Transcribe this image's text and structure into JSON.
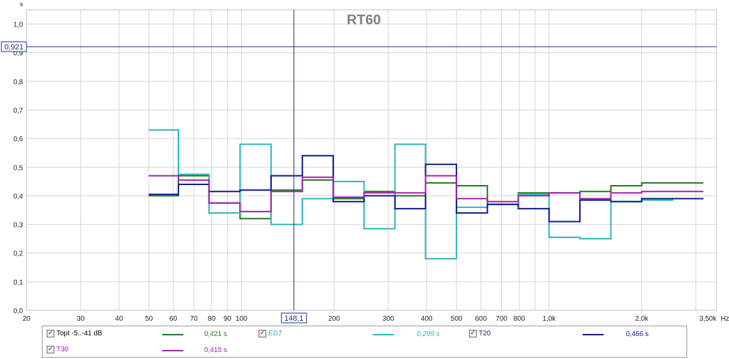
{
  "chart_data": {
    "type": "line",
    "title": "RT60",
    "y_unit": "s",
    "x_unit": "Hz",
    "x_scale": "log",
    "xlim": [
      20,
      3500
    ],
    "ylim": [
      0,
      1.05
    ],
    "grid": true,
    "y_ticks": [
      "0,0",
      "0,1",
      "0,2",
      "0,3",
      "0,4",
      "0,5",
      "0,6",
      "0,7",
      "0,8",
      "0,9",
      "1,0"
    ],
    "x_ticks": [
      {
        "value": 20,
        "label": "20"
      },
      {
        "value": 30,
        "label": "30"
      },
      {
        "value": 40,
        "label": "40"
      },
      {
        "value": 50,
        "label": "50"
      },
      {
        "value": 60,
        "label": "60"
      },
      {
        "value": 70,
        "label": "70"
      },
      {
        "value": 80,
        "label": "80"
      },
      {
        "value": 90,
        "label": "90"
      },
      {
        "value": 100,
        "label": "100"
      },
      {
        "value": 200,
        "label": "200"
      },
      {
        "value": 300,
        "label": "300"
      },
      {
        "value": 400,
        "label": "400"
      },
      {
        "value": 500,
        "label": "500"
      },
      {
        "value": 600,
        "label": "600"
      },
      {
        "value": 700,
        "label": "700"
      },
      {
        "value": 800,
        "label": "800"
      },
      {
        "value": 1000,
        "label": "1,0k"
      },
      {
        "value": 2000,
        "label": "2,0k"
      },
      {
        "value": 3500,
        "label": "3,50k"
      }
    ],
    "bands_hz": [
      56,
      70,
      88,
      111,
      140,
      177,
      223,
      281,
      354,
      445,
      561,
      707,
      891,
      1122,
      1414,
      1782,
      2245,
      2828
    ],
    "series": [
      {
        "name": "Topt -5..-41 dB",
        "color": "#1a7a1a",
        "values": [
          0.4,
          0.47,
          0.375,
          0.32,
          0.42,
          0.455,
          0.39,
          0.415,
          0.4,
          0.445,
          0.435,
          0.37,
          0.41,
          0.41,
          0.415,
          0.435,
          0.445,
          0.445
        ]
      },
      {
        "name": "EDT",
        "color": "#2ab5c0",
        "values": [
          0.63,
          0.475,
          0.34,
          0.58,
          0.3,
          0.39,
          0.45,
          0.285,
          0.58,
          0.18,
          0.36,
          0.37,
          0.405,
          0.255,
          0.25,
          0.38,
          0.385,
          0.39
        ]
      },
      {
        "name": "T20",
        "color": "#0a1a8a",
        "values": [
          0.405,
          0.44,
          0.415,
          0.42,
          0.47,
          0.54,
          0.38,
          0.4,
          0.355,
          0.51,
          0.34,
          0.37,
          0.355,
          0.31,
          0.385,
          0.38,
          0.39,
          0.39
        ]
      },
      {
        "name": "T30",
        "color": "#a020b0",
        "values": [
          0.47,
          0.455,
          0.375,
          0.345,
          0.415,
          0.465,
          0.395,
          0.41,
          0.41,
          0.47,
          0.39,
          0.38,
          0.4,
          0.41,
          0.39,
          0.41,
          0.415,
          0.415
        ]
      }
    ],
    "cursor": {
      "x_label": "148,1",
      "y_label": "0,921"
    }
  },
  "legend": [
    {
      "label": "Topt -5..-41 dB",
      "value": "0,421 s",
      "checked": "✓",
      "color": "#1a7a1a",
      "italic": false
    },
    {
      "label": "EDT",
      "value": "0,299 s",
      "checked": "✓",
      "color": "#2ab5c0",
      "italic": true
    },
    {
      "label": "T20",
      "value": "0,466 s",
      "checked": "✓",
      "color": "#0a1a8a",
      "italic": false
    },
    {
      "label": "T30",
      "value": "0,415 s",
      "checked": "✓",
      "color": "#a020b0",
      "italic": false
    }
  ]
}
